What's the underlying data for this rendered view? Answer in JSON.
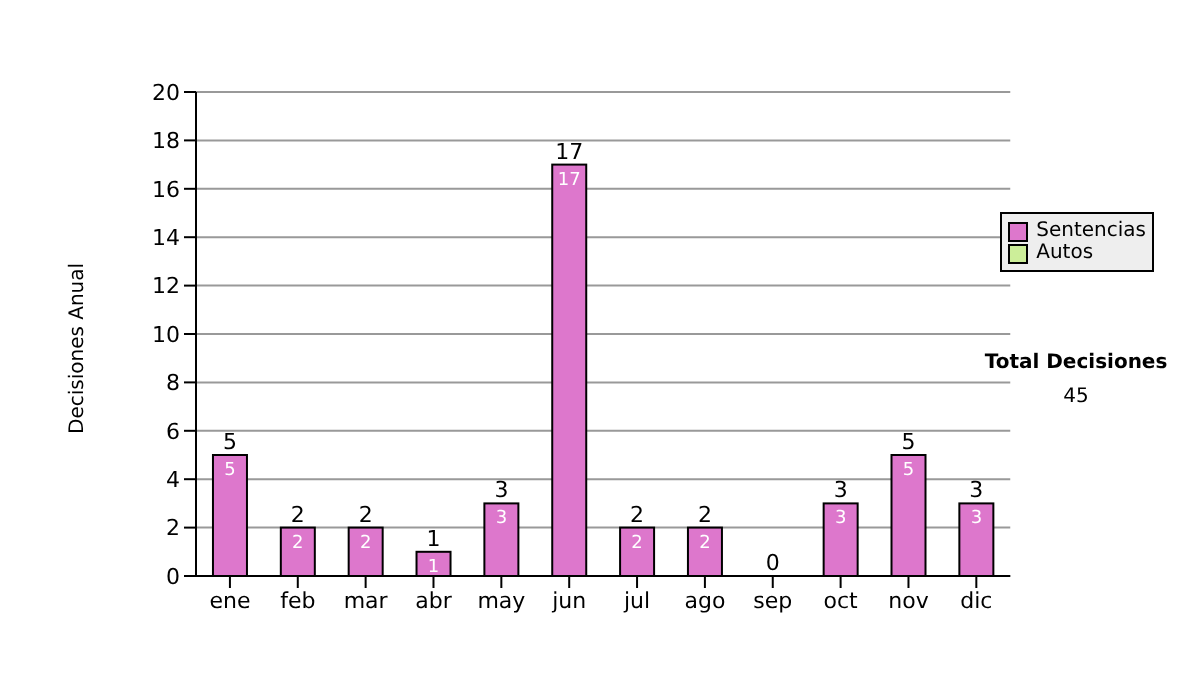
{
  "chart_data": {
    "type": "bar",
    "ylabel": "Decisiones Anual",
    "categories": [
      "ene",
      "feb",
      "mar",
      "abr",
      "may",
      "jun",
      "jul",
      "ago",
      "sep",
      "oct",
      "nov",
      "dic"
    ],
    "series": [
      {
        "name": "Sentencias",
        "color": "#dd77cc",
        "values": [
          5,
          2,
          2,
          1,
          3,
          17,
          2,
          2,
          0,
          3,
          5,
          3
        ],
        "value_labels": [
          "5",
          "2",
          "2",
          "1",
          "3",
          "17",
          "2",
          "2",
          null,
          "3",
          "5",
          "3"
        ]
      },
      {
        "name": "Autos",
        "color": "#ccee99",
        "values": [
          0,
          0,
          0,
          0,
          0,
          0,
          0,
          0,
          0,
          0,
          0,
          0
        ]
      }
    ],
    "stacked": true,
    "totals": [
      "5",
      "2",
      "2",
      "1",
      "3",
      "17",
      "2",
      "2",
      "0",
      "3",
      "5",
      "3"
    ],
    "ylim": [
      0,
      20
    ],
    "yticks": [
      0,
      2,
      4,
      6,
      8,
      10,
      12,
      14,
      16,
      18,
      20
    ],
    "grid": "y",
    "legend": "right",
    "annotations": [
      "Total Decisiones",
      "45"
    ]
  }
}
